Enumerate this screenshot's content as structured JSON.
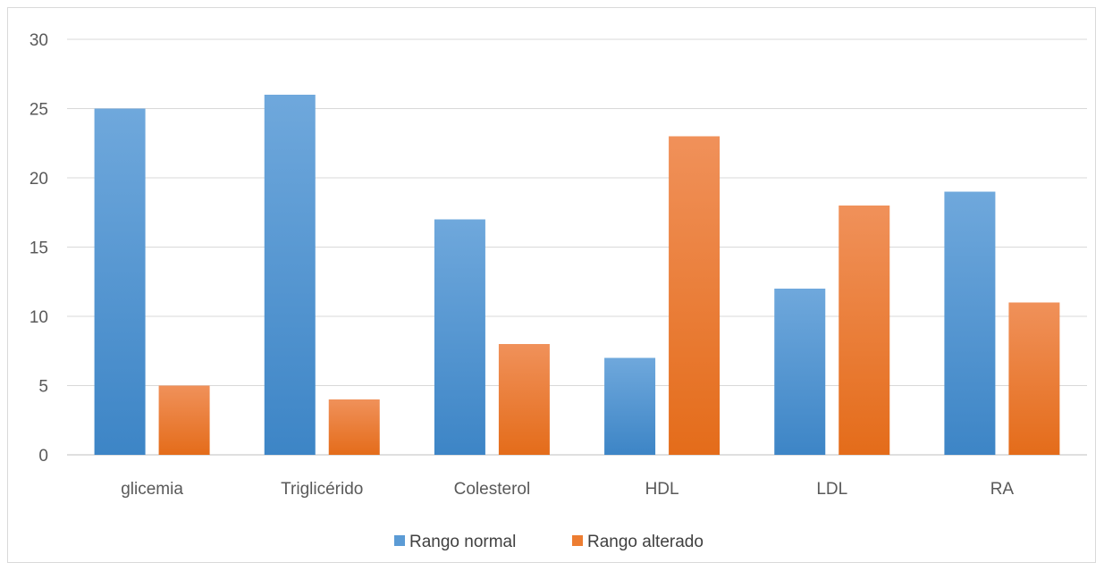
{
  "chart_data": {
    "type": "bar",
    "title": "",
    "xlabel": "",
    "ylabel": "",
    "categories": [
      "glicemia",
      "Triglicérido",
      "Colesterol",
      "HDL",
      "LDL",
      "RA"
    ],
    "series": [
      {
        "name": "Rango normal",
        "values": [
          25,
          26,
          17,
          7,
          12,
          19
        ],
        "color": "#5b9bd5"
      },
      {
        "name": "Rango alterado",
        "values": [
          5,
          4,
          8,
          23,
          18,
          11
        ],
        "color": "#ed7d31"
      }
    ],
    "ylim": [
      0,
      30
    ],
    "yticks": [
      0,
      5,
      10,
      15,
      20,
      25,
      30
    ],
    "grid": true,
    "legend_position": "bottom"
  }
}
